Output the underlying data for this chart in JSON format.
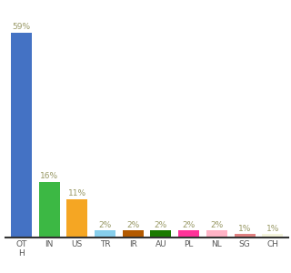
{
  "categories": [
    "OT\nH",
    "IN",
    "US",
    "TR",
    "IR",
    "AU",
    "PL",
    "NL",
    "SG",
    "CH"
  ],
  "values": [
    59,
    16,
    11,
    2,
    2,
    2,
    2,
    2,
    1,
    1
  ],
  "bar_colors": [
    "#4472c4",
    "#3cb844",
    "#f5a623",
    "#87ceeb",
    "#b35a00",
    "#1a7a00",
    "#ff3399",
    "#ffb3c6",
    "#e08080",
    "#f5f5dc"
  ],
  "value_labels": [
    "59%",
    "16%",
    "11%",
    "2%",
    "2%",
    "2%",
    "2%",
    "2%",
    "1%",
    "1%"
  ],
  "background_color": "#ffffff",
  "label_color": "#999966",
  "label_fontsize": 6.5,
  "tick_fontsize": 6.5,
  "ylim": [
    0,
    66
  ]
}
